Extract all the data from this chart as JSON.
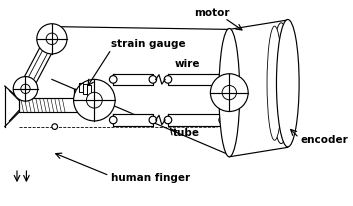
{
  "bg": "#ffffff",
  "lc": "#000000",
  "lw": 0.85,
  "figsize": [
    3.53,
    2.06
  ],
  "dpi": 100,
  "labels": {
    "strain_gauge": "strain gauge",
    "motor": "motor",
    "wire": "wire",
    "tube": "tube",
    "encoder": "encoder",
    "human_finger": "human finger"
  },
  "font_size": 7.5,
  "font_family": "DejaVu Sans"
}
